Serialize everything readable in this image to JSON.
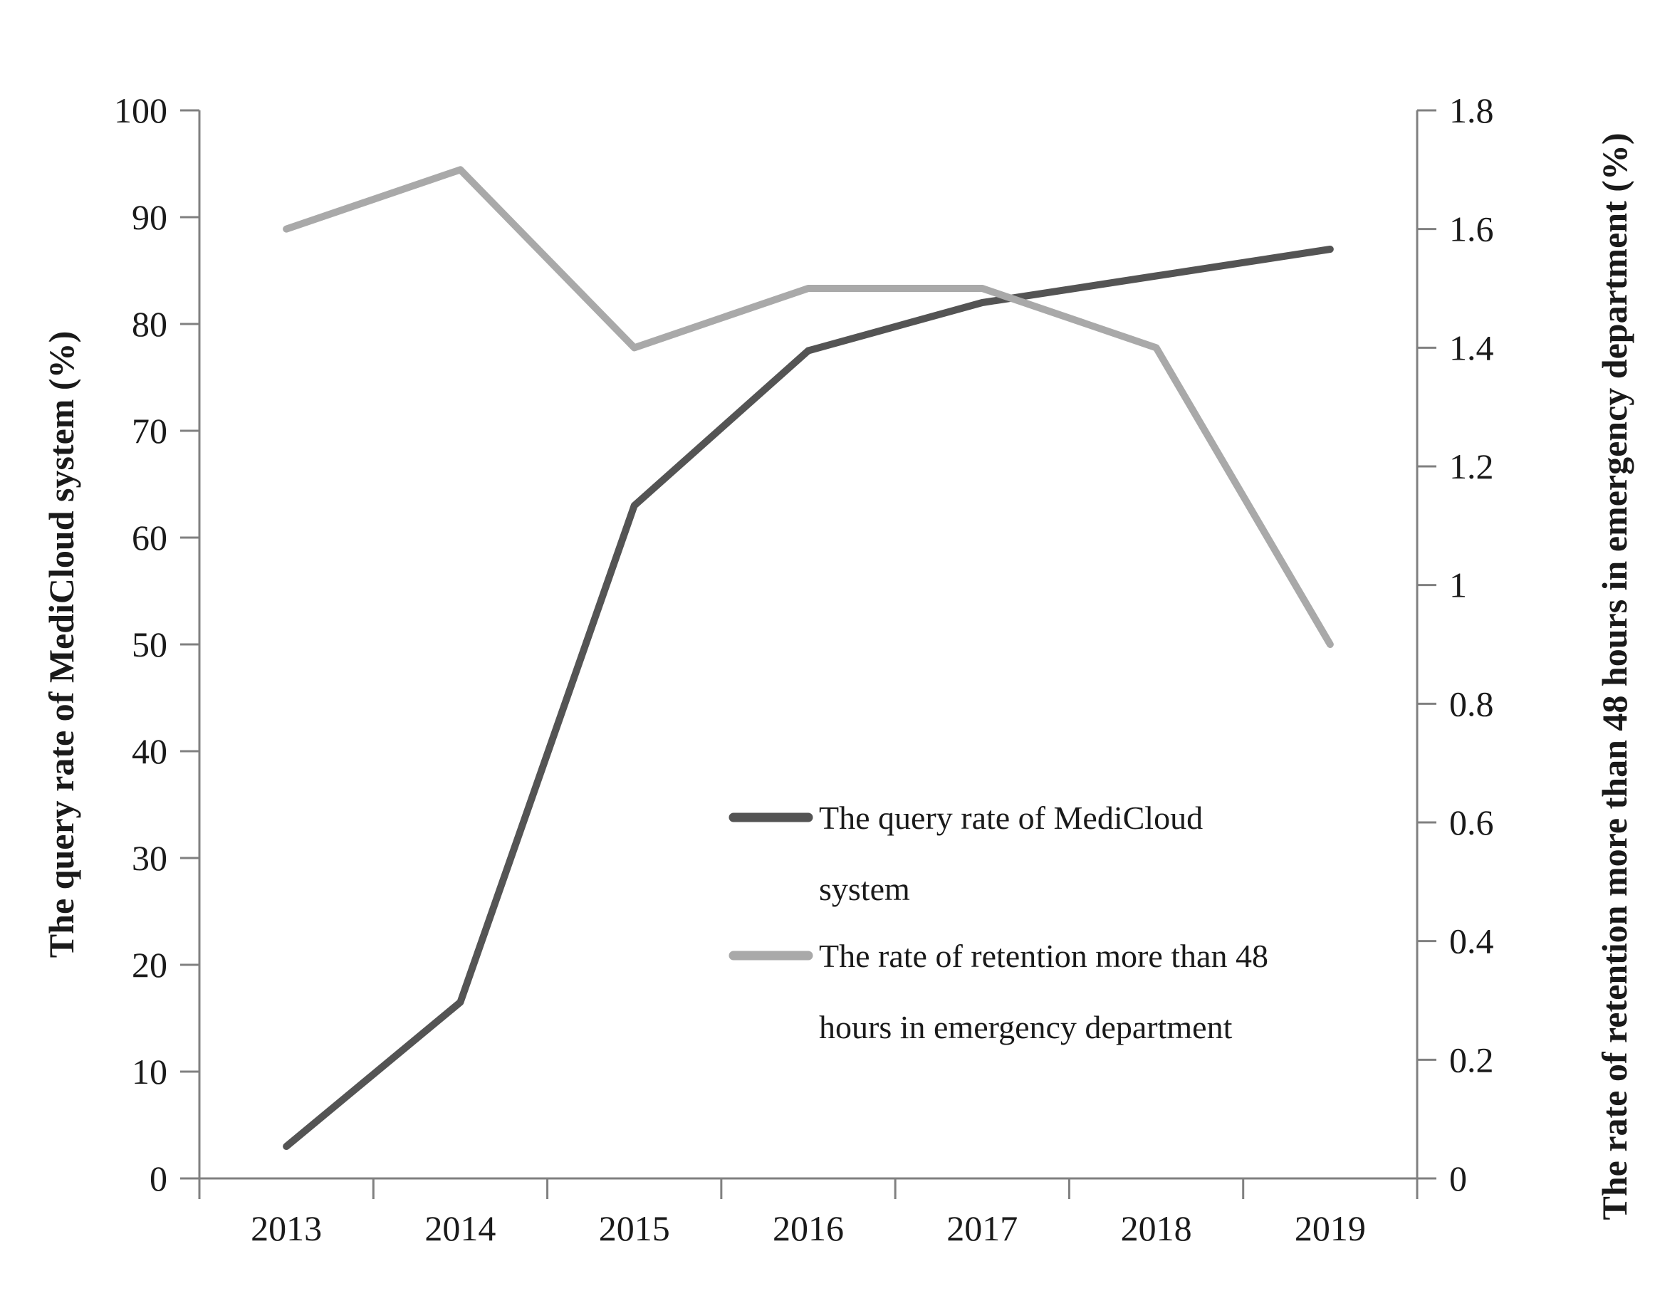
{
  "figure": {
    "background": "#ffffff",
    "left_axis": {
      "title": "The query rate of MediCloud system (%)",
      "tick_labels": [
        "100",
        "90",
        "80",
        "70",
        "60",
        "50",
        "40",
        "30",
        "20",
        "10",
        "0"
      ]
    },
    "right_axis": {
      "title": "The rate of retention more than 48 hours in emergency department (%)",
      "tick_labels": [
        "1.8",
        "1.6",
        "1.4",
        "1.2",
        "1",
        "0.8",
        "0.6",
        "0.4",
        "0.2",
        "0"
      ]
    },
    "x_axis": {
      "tick_labels": [
        "2013",
        "2014",
        "2015",
        "2016",
        "2017",
        "2018",
        "2019"
      ]
    },
    "legend": {
      "items": [
        {
          "lines": [
            "The query rate of MediCloud",
            "system"
          ],
          "color": "#545454"
        },
        {
          "lines": [
            "The rate of retention more than 48",
            "hours in emergency department"
          ],
          "color": "#a9a9a9"
        }
      ]
    },
    "colors": {
      "axis": "#808080",
      "text": "#1a1a1a",
      "background": "#ffffff",
      "series_query_rate": "#545454",
      "series_retention_rate": "#a9a9a9"
    }
  },
  "chart_data": {
    "type": "line",
    "categories": [
      "2013",
      "2014",
      "2015",
      "2016",
      "2017",
      "2018",
      "2019"
    ],
    "series": [
      {
        "name": "The query rate of MediCloud system",
        "axis": "left",
        "color": "#545454",
        "values": [
          3,
          16.5,
          63,
          77.5,
          82,
          84.5,
          87
        ]
      },
      {
        "name": "The rate of retention more than 48 hours in emergency department",
        "axis": "right",
        "color": "#a9a9a9",
        "values": [
          1.6,
          1.7,
          1.4,
          1.5,
          1.5,
          1.4,
          0.9
        ]
      }
    ],
    "left_ylim": [
      0,
      100
    ],
    "right_ylim": [
      0,
      1.8
    ],
    "left_tick_step": 10,
    "right_tick_step": 0.2,
    "xlabel": "",
    "left_ylabel": "The query rate of MediCloud system (%)",
    "right_ylabel": "The rate of retention more than 48 hours in emergency department (%)",
    "title": "",
    "grid": false,
    "legend_position": "inside-center-right"
  }
}
